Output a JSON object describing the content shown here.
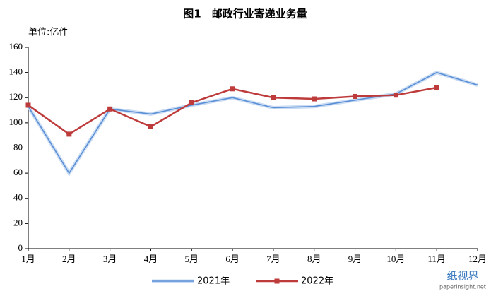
{
  "chart_data": {
    "type": "line",
    "title": "图1　邮政行业寄递业务量",
    "y_label": "单位:亿件",
    "categories": [
      "1月",
      "2月",
      "3月",
      "4月",
      "5月",
      "6月",
      "7月",
      "8月",
      "9月",
      "10月",
      "11月",
      "12月"
    ],
    "series": [
      {
        "name": "2021年",
        "color": "#5b8fd6",
        "marker": "none",
        "values": [
          113,
          60,
          111,
          107,
          114,
          120,
          112,
          113,
          118,
          123,
          140,
          130
        ]
      },
      {
        "name": "2022年",
        "color": "#be3b3b",
        "marker": "square",
        "values": [
          114,
          91,
          111,
          97,
          116,
          127,
          120,
          119,
          121,
          122,
          128,
          null
        ]
      }
    ],
    "ylim": [
      0,
      160
    ],
    "yticks": [
      0,
      20,
      40,
      60,
      80,
      100,
      120,
      140,
      160
    ],
    "grid": false,
    "legend": "bottom"
  },
  "watermark": {
    "name": "纸视界",
    "url": "paperinsight.net"
  }
}
